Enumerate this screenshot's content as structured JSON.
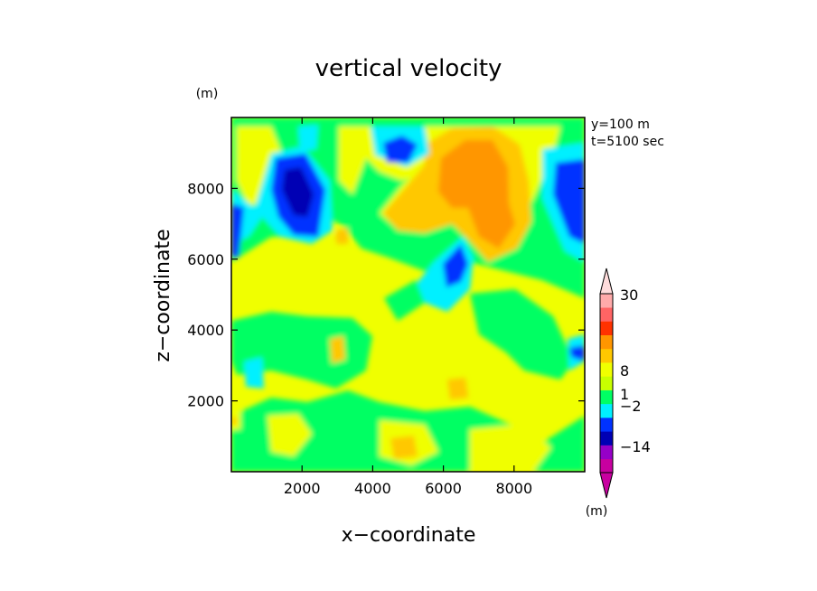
{
  "chart_data": {
    "type": "heatmap",
    "title": "vertical velocity",
    "xlabel": "x−coordinate",
    "ylabel": "z−coordinate",
    "unit_label": "(m)",
    "annotation_y": "y=100 m",
    "annotation_t": "t=5100 sec",
    "xlim": [
      0,
      10000
    ],
    "ylim": [
      0,
      10000
    ],
    "x_ticks": [
      2000,
      4000,
      6000,
      8000
    ],
    "y_ticks": [
      2000,
      4000,
      6000,
      8000
    ],
    "colorbar": {
      "unit": "(m)",
      "tick_labels": [
        "30",
        "8",
        "1",
        "−2",
        "−14"
      ],
      "colors": [
        "#c800a0",
        "#9600c8",
        "#0000b4",
        "#0032ff",
        "#00f0ff",
        "#00ff64",
        "#c8ff00",
        "#f0ff00",
        "#ffc800",
        "#ff9600",
        "#ff3200",
        "#ff6464",
        "#ffaaaa"
      ]
    },
    "field_description": "vertical velocity contour field on x–z plane"
  }
}
